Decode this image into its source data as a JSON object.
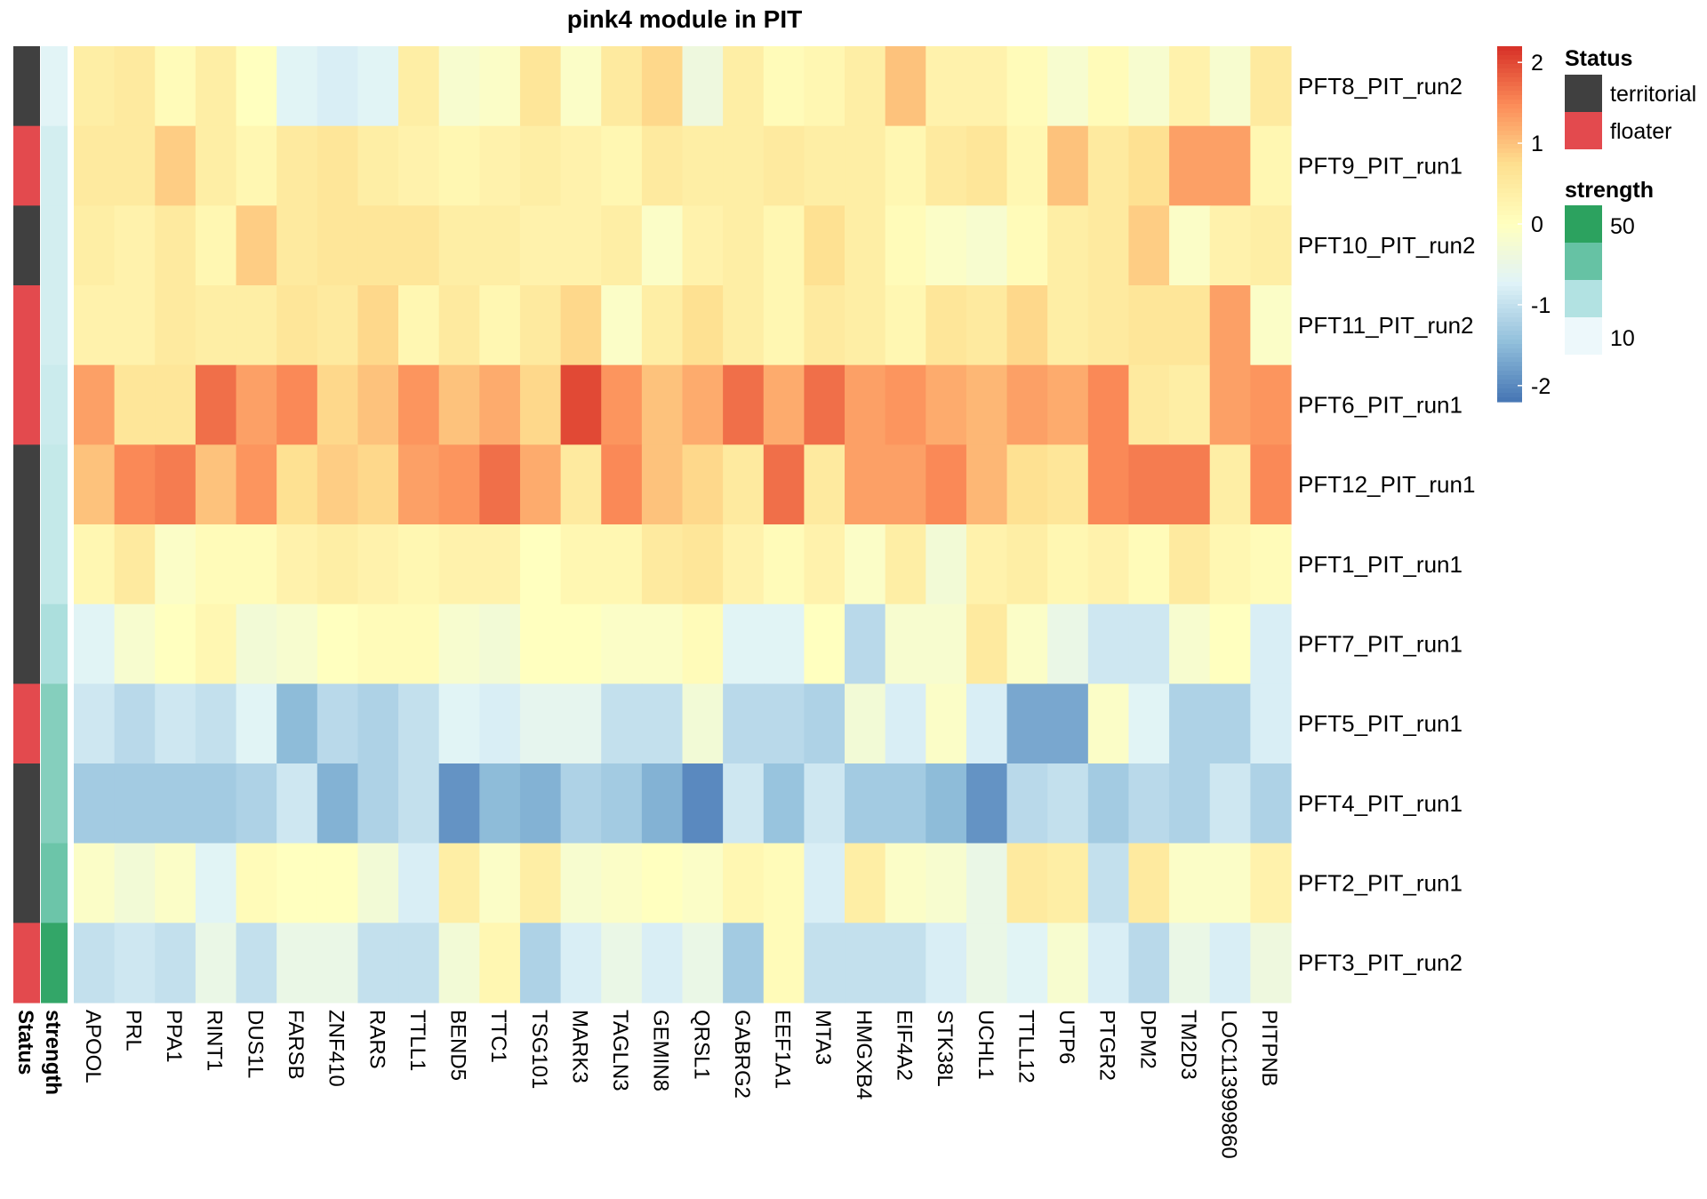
{
  "chart_data": {
    "type": "heatmap",
    "title": "pink4 module in PIT",
    "columns": [
      "APOOL",
      "PRL",
      "PPA1",
      "RINT1",
      "DUS1L",
      "FARSB",
      "ZNF410",
      "RARS",
      "TTLL1",
      "BEND5",
      "TTC1",
      "TSG101",
      "MARK3",
      "TAGLN3",
      "GEMIN8",
      "QRSL1",
      "GABRG2",
      "EEF1A1",
      "MTA3",
      "HMGXB4",
      "EIF4A2",
      "STK38L",
      "UCHL1",
      "TTLL12",
      "UTP6",
      "PTGR2",
      "DPM2",
      "TM2D3",
      "LOC113999860",
      "PITPNB"
    ],
    "rows": [
      "PFT8_PIT_run2",
      "PFT9_PIT_run1",
      "PFT10_PIT_run2",
      "PFT11_PIT_run2",
      "PFT6_PIT_run1",
      "PFT12_PIT_run1",
      "PFT1_PIT_run1",
      "PFT7_PIT_run1",
      "PFT5_PIT_run1",
      "PFT4_PIT_run1",
      "PFT2_PIT_run1",
      "PFT3_PIT_run2"
    ],
    "values": [
      [
        0.4,
        0.5,
        0.1,
        0.4,
        0.0,
        -0.7,
        -0.8,
        -0.7,
        0.4,
        -0.2,
        -0.1,
        0.6,
        -0.1,
        0.5,
        0.8,
        -0.4,
        0.4,
        0.1,
        0.2,
        0.4,
        1.0,
        0.3,
        0.3,
        0.1,
        -0.2,
        0.1,
        -0.2,
        0.3,
        -0.2,
        0.5
      ],
      [
        0.5,
        0.5,
        0.9,
        0.4,
        0.2,
        0.5,
        0.6,
        0.4,
        0.3,
        0.2,
        0.3,
        0.4,
        0.3,
        0.2,
        0.5,
        0.4,
        0.4,
        0.5,
        0.4,
        0.4,
        0.2,
        0.5,
        0.6,
        0.2,
        1.0,
        0.5,
        0.7,
        1.3,
        1.3,
        0.2
      ],
      [
        0.4,
        0.3,
        0.5,
        0.2,
        0.9,
        0.5,
        0.6,
        0.6,
        0.6,
        0.4,
        0.4,
        0.3,
        0.3,
        0.4,
        -0.1,
        0.3,
        0.4,
        0.2,
        0.7,
        0.4,
        0.1,
        -0.1,
        -0.2,
        0.1,
        0.4,
        0.5,
        0.9,
        -0.1,
        0.3,
        0.4
      ],
      [
        0.3,
        0.3,
        0.5,
        0.4,
        0.4,
        0.6,
        0.5,
        0.8,
        0.2,
        0.5,
        0.2,
        0.5,
        0.8,
        -0.1,
        0.4,
        0.7,
        0.4,
        0.2,
        0.5,
        0.4,
        0.2,
        0.6,
        0.5,
        0.8,
        0.4,
        0.5,
        0.6,
        0.6,
        1.3,
        -0.1
      ],
      [
        1.3,
        0.6,
        0.6,
        1.7,
        1.3,
        1.5,
        0.8,
        1.0,
        1.4,
        1.0,
        1.2,
        0.8,
        2.0,
        1.4,
        1.0,
        1.2,
        1.7,
        1.2,
        1.7,
        1.3,
        1.4,
        1.2,
        1.1,
        1.3,
        1.2,
        1.5,
        0.5,
        0.4,
        1.3,
        1.4
      ],
      [
        1.0,
        1.5,
        1.6,
        1.0,
        1.4,
        0.7,
        0.9,
        0.8,
        1.3,
        1.4,
        1.7,
        1.2,
        0.5,
        1.5,
        1.0,
        0.8,
        0.5,
        1.7,
        0.5,
        1.3,
        1.3,
        1.5,
        1.1,
        0.7,
        0.6,
        1.5,
        1.6,
        1.6,
        0.4,
        1.5
      ],
      [
        0.2,
        0.5,
        -0.1,
        0.1,
        0.1,
        0.3,
        0.4,
        0.3,
        0.2,
        0.3,
        0.3,
        0.0,
        0.2,
        0.2,
        0.5,
        0.6,
        0.3,
        0.1,
        0.3,
        -0.1,
        0.4,
        -0.3,
        0.3,
        0.4,
        0.2,
        0.3,
        0.1,
        0.5,
        0.2,
        0.1
      ],
      [
        -0.7,
        -0.2,
        0.0,
        0.2,
        -0.3,
        -0.2,
        0.0,
        0.1,
        0.1,
        -0.2,
        -0.3,
        0.0,
        0.0,
        -0.1,
        -0.1,
        0.1,
        -0.7,
        -0.7,
        0.0,
        -1.1,
        -0.2,
        -0.2,
        0.5,
        -0.1,
        -0.5,
        -0.9,
        -0.9,
        -0.2,
        0.0,
        -0.8
      ],
      [
        -0.9,
        -1.1,
        -0.9,
        -1.0,
        -0.7,
        -1.5,
        -1.1,
        -1.2,
        -1.0,
        -0.7,
        -0.8,
        -0.6,
        -0.6,
        -1.0,
        -1.0,
        -0.3,
        -1.1,
        -1.1,
        -1.2,
        -0.3,
        -0.8,
        -0.1,
        -0.8,
        -1.7,
        -1.7,
        -0.1,
        -0.7,
        -1.2,
        -1.2,
        -0.8
      ],
      [
        -1.3,
        -1.3,
        -1.3,
        -1.3,
        -1.2,
        -0.9,
        -1.6,
        -1.2,
        -1.0,
        -1.9,
        -1.5,
        -1.6,
        -1.2,
        -1.3,
        -1.6,
        -2.0,
        -0.9,
        -1.4,
        -0.9,
        -1.3,
        -1.3,
        -1.5,
        -1.9,
        -1.1,
        -1.0,
        -1.3,
        -1.1,
        -1.2,
        -0.9,
        -1.2
      ],
      [
        -0.1,
        -0.3,
        -0.1,
        -0.7,
        0.1,
        0.0,
        0.0,
        -0.3,
        -0.8,
        0.4,
        -0.1,
        0.4,
        -0.2,
        -0.1,
        0.0,
        -0.1,
        0.2,
        0.1,
        -0.8,
        0.4,
        -0.1,
        -0.2,
        -0.5,
        0.5,
        0.4,
        -1.0,
        0.5,
        -0.1,
        -0.1,
        0.3
      ],
      [
        -1.0,
        -0.9,
        -1.0,
        -0.5,
        -1.0,
        -0.5,
        -0.5,
        -1.0,
        -1.0,
        -0.3,
        0.2,
        -1.2,
        -0.8,
        -0.5,
        -0.8,
        -0.5,
        -1.3,
        0.1,
        -1.0,
        -1.0,
        -1.0,
        -0.8,
        -0.5,
        -0.7,
        -0.2,
        -0.8,
        -1.1,
        -0.5,
        -0.8,
        -0.4
      ]
    ],
    "annotations": {
      "status_label": "Status",
      "strength_label": "strength",
      "status": [
        "territorial",
        "floater",
        "territorial",
        "floater",
        "floater",
        "territorial",
        "territorial",
        "territorial",
        "floater",
        "territorial",
        "territorial",
        "floater"
      ],
      "strength": [
        8,
        12,
        12,
        12,
        14,
        16,
        16,
        22,
        30,
        30,
        35,
        50
      ]
    },
    "color_scale": {
      "min": -2.2,
      "max": 2.2,
      "ticks": [
        "-2",
        "-1",
        "0",
        "1",
        "2"
      ],
      "tick_values": [
        -2,
        -1,
        0,
        1,
        2
      ],
      "colors": [
        "#4575b4",
        "#91bfdb",
        "#e0f3f8",
        "#ffffbf",
        "#fee090",
        "#fc8d59",
        "#d73027"
      ]
    },
    "legend": {
      "status_title": "Status",
      "status_items": [
        {
          "label": "territorial",
          "color": "#404040"
        },
        {
          "label": "floater",
          "color": "#e34a4e"
        }
      ],
      "strength_title": "strength",
      "strength_ticks": [
        "50",
        "10"
      ],
      "strength_colors": [
        "#2ca25f",
        "#66c2a4",
        "#b2e2e2",
        "#edf8fb"
      ]
    },
    "status_colors": {
      "territorial": "#404040",
      "floater": "#e34a4e"
    }
  }
}
